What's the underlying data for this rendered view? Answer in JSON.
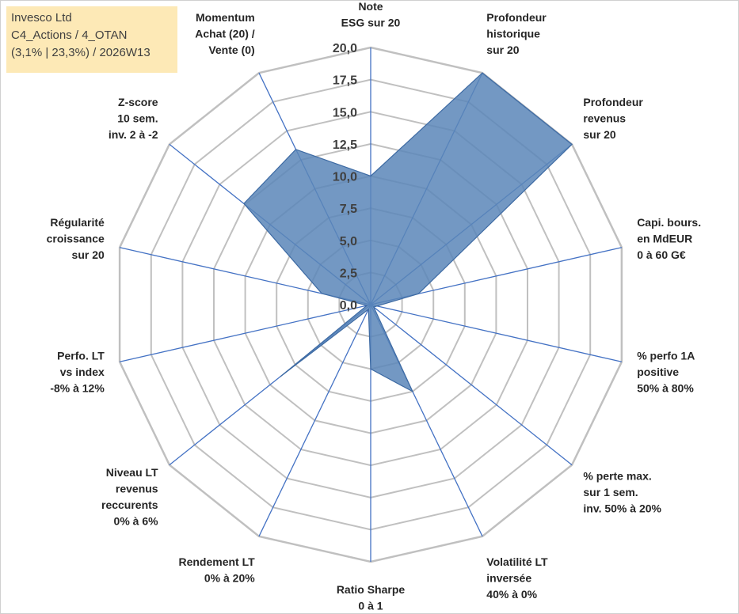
{
  "info": {
    "line1": "Invesco Ltd",
    "line2": "C4_Actions / 4_OTAN",
    "line3": "(3,1% | 23,3%) / 2026W13"
  },
  "colors": {
    "fill": "#5b86b8",
    "stroke": "#3d6aa3",
    "grid": "#c0c0c0",
    "spoke": "#4472c4"
  },
  "chart_data": {
    "type": "radar",
    "title": "",
    "rmin": 0,
    "rmax": 20,
    "ticks": [
      "0,0",
      "2,5",
      "5,0",
      "7,5",
      "10,0",
      "12,5",
      "15,0",
      "17,5",
      "20,0"
    ],
    "axes": [
      {
        "label": [
          "Note",
          "ESG sur 20"
        ],
        "value": 10
      },
      {
        "label": [
          "Profondeur",
          "historique",
          "sur 20"
        ],
        "value": 20
      },
      {
        "label": [
          "Profondeur",
          "revenus",
          "sur 20"
        ],
        "value": 20
      },
      {
        "label": [
          "Capi. bours.",
          "en MdEUR",
          "0 à 60 G€"
        ],
        "value": 3.8
      },
      {
        "label": [
          "% perfo 1A",
          "positive",
          "50% à 80%"
        ],
        "value": 0.5
      },
      {
        "label": [
          "% perte max.",
          "sur 1 sem.",
          "inv. 50% à 20%"
        ],
        "value": 0.3
      },
      {
        "label": [
          "Volatilité LT",
          "inversée",
          "40% à 0%"
        ],
        "value": 7.5
      },
      {
        "label": [
          "Ratio Sharpe",
          "0 à 1"
        ],
        "value": 5
      },
      {
        "label": [
          "Rendement LT",
          "0% à 20%"
        ],
        "value": 0.4
      },
      {
        "label": [
          "Niveau LT",
          "revenus",
          "reccurents",
          "0% à 6%"
        ],
        "value": 9
      },
      {
        "label": [
          "Perfo. LT",
          "vs index",
          "-8% à 12%"
        ],
        "value": 0.3
      },
      {
        "label": [
          "Régularité",
          "croissance",
          "sur 20"
        ],
        "value": 3.9
      },
      {
        "label": [
          "Z-score",
          "10 sem.",
          "inv. 2 à -2"
        ],
        "value": 12.6
      },
      {
        "label": [
          "Momentum",
          "Achat (20) /",
          "Vente (0)"
        ],
        "value": 13.4
      }
    ]
  }
}
